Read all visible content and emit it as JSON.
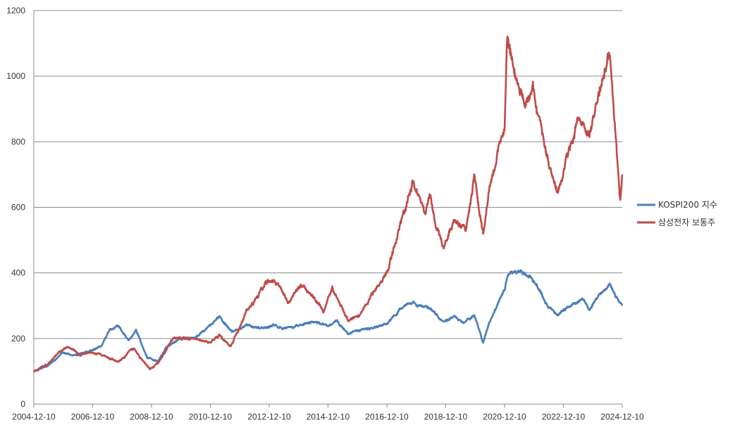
{
  "chart_data": {
    "type": "line",
    "title": "",
    "xlabel": "",
    "ylabel": "",
    "ylim": [
      0,
      1200
    ],
    "y_ticks": [
      0,
      200,
      400,
      600,
      800,
      1000,
      1200
    ],
    "x_range": [
      "2004-12-10",
      "2024-12-10"
    ],
    "x_ticks": [
      "2004-12-10",
      "2006-12-10",
      "2008-12-10",
      "2010-12-10",
      "2012-12-10",
      "2014-12-10",
      "2016-12-10",
      "2018-12-10",
      "2020-12-10",
      "2022-12-10",
      "2024-12-10"
    ],
    "grid": "horizontal",
    "legend_position": "right",
    "series": [
      {
        "name": "KOSPI200 지수",
        "color": "#4a7ebb",
        "points": [
          [
            "2004-12-10",
            100
          ],
          [
            "2005-06-01",
            118
          ],
          [
            "2005-12-01",
            155
          ],
          [
            "2006-06-01",
            150
          ],
          [
            "2006-12-01",
            165
          ],
          [
            "2007-04-01",
            180
          ],
          [
            "2007-07-15",
            230
          ],
          [
            "2007-11-01",
            238
          ],
          [
            "2008-03-01",
            195
          ],
          [
            "2008-06-01",
            225
          ],
          [
            "2008-10-20",
            140
          ],
          [
            "2009-03-01",
            130
          ],
          [
            "2009-06-01",
            170
          ],
          [
            "2009-12-01",
            200
          ],
          [
            "2010-06-01",
            200
          ],
          [
            "2010-12-10",
            240
          ],
          [
            "2011-04-01",
            268
          ],
          [
            "2011-09-01",
            220
          ],
          [
            "2012-03-01",
            240
          ],
          [
            "2012-08-01",
            230
          ],
          [
            "2013-03-01",
            240
          ],
          [
            "2013-06-01",
            230
          ],
          [
            "2013-12-01",
            240
          ],
          [
            "2014-06-01",
            250
          ],
          [
            "2014-12-10",
            235
          ],
          [
            "2015-04-01",
            255
          ],
          [
            "2015-08-20",
            215
          ],
          [
            "2015-12-01",
            225
          ],
          [
            "2016-06-01",
            230
          ],
          [
            "2016-12-10",
            245
          ],
          [
            "2017-06-01",
            290
          ],
          [
            "2017-11-01",
            310
          ],
          [
            "2018-06-01",
            290
          ],
          [
            "2018-10-30",
            250
          ],
          [
            "2019-04-01",
            265
          ],
          [
            "2019-08-01",
            245
          ],
          [
            "2019-12-01",
            275
          ],
          [
            "2020-03-19",
            185
          ],
          [
            "2020-06-01",
            250
          ],
          [
            "2020-12-10",
            350
          ],
          [
            "2021-02-01",
            400
          ],
          [
            "2021-06-25",
            405
          ],
          [
            "2021-12-01",
            380
          ],
          [
            "2022-06-01",
            300
          ],
          [
            "2022-09-30",
            270
          ],
          [
            "2023-03-01",
            300
          ],
          [
            "2023-08-01",
            320
          ],
          [
            "2023-10-30",
            290
          ],
          [
            "2024-03-01",
            335
          ],
          [
            "2024-07-15",
            360
          ],
          [
            "2024-10-01",
            325
          ],
          [
            "2024-12-10",
            300
          ]
        ]
      },
      {
        "name": "삼성전자 보통주",
        "color": "#be4b48",
        "points": [
          [
            "2004-12-10",
            100
          ],
          [
            "2005-06-01",
            120
          ],
          [
            "2005-10-01",
            155
          ],
          [
            "2006-02-01",
            175
          ],
          [
            "2006-07-01",
            150
          ],
          [
            "2006-12-01",
            160
          ],
          [
            "2007-06-01",
            145
          ],
          [
            "2007-11-01",
            130
          ],
          [
            "2008-05-01",
            170
          ],
          [
            "2008-11-20",
            105
          ],
          [
            "2009-03-01",
            125
          ],
          [
            "2009-09-01",
            200
          ],
          [
            "2010-04-01",
            200
          ],
          [
            "2010-12-10",
            190
          ],
          [
            "2011-04-01",
            210
          ],
          [
            "2011-08-20",
            175
          ],
          [
            "2012-03-01",
            280
          ],
          [
            "2012-06-01",
            310
          ],
          [
            "2012-11-01",
            375
          ],
          [
            "2013-04-01",
            370
          ],
          [
            "2013-08-01",
            310
          ],
          [
            "2014-01-01",
            360
          ],
          [
            "2014-06-01",
            330
          ],
          [
            "2014-10-15",
            280
          ],
          [
            "2015-02-01",
            355
          ],
          [
            "2015-08-20",
            250
          ],
          [
            "2016-01-01",
            270
          ],
          [
            "2016-06-01",
            330
          ],
          [
            "2016-12-10",
            400
          ],
          [
            "2017-05-01",
            520
          ],
          [
            "2017-11-01",
            690
          ],
          [
            "2018-04-01",
            570
          ],
          [
            "2018-06-01",
            640
          ],
          [
            "2018-08-01",
            560
          ],
          [
            "2018-11-15",
            470
          ],
          [
            "2019-04-01",
            560
          ],
          [
            "2019-08-20",
            530
          ],
          [
            "2019-12-01",
            700
          ],
          [
            "2020-03-19",
            520
          ],
          [
            "2020-06-01",
            650
          ],
          [
            "2020-12-10",
            850
          ],
          [
            "2021-01-11",
            1120
          ],
          [
            "2021-05-01",
            990
          ],
          [
            "2021-09-01",
            910
          ],
          [
            "2021-12-01",
            960
          ],
          [
            "2022-06-01",
            750
          ],
          [
            "2022-09-30",
            650
          ],
          [
            "2023-02-01",
            760
          ],
          [
            "2023-07-01",
            880
          ],
          [
            "2023-10-30",
            820
          ],
          [
            "2024-03-01",
            960
          ],
          [
            "2024-07-10",
            1080
          ],
          [
            "2024-09-01",
            880
          ],
          [
            "2024-11-15",
            615
          ],
          [
            "2024-12-10",
            700
          ]
        ]
      }
    ]
  }
}
